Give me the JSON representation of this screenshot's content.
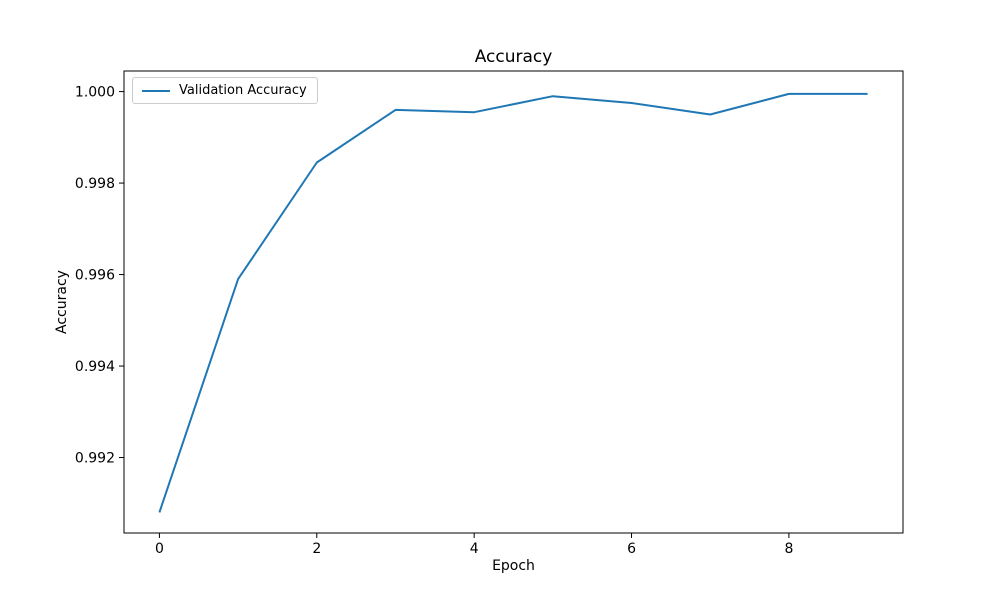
{
  "figure": {
    "background": "#ffffff",
    "axes_edge_color": "#000000",
    "text_color": "#000000"
  },
  "chart_data": {
    "type": "line",
    "title": "Accuracy",
    "xlabel": "Epoch",
    "ylabel": "Accuracy",
    "x": [
      0,
      1,
      2,
      3,
      4,
      5,
      6,
      7,
      8,
      9
    ],
    "series": [
      {
        "name": "Validation Accuracy",
        "color": "#1f77b4",
        "values": [
          0.9908,
          0.9959,
          0.99845,
          0.9996,
          0.99955,
          0.9999,
          0.99975,
          0.9995,
          0.99995,
          0.99995
        ]
      }
    ],
    "xlim": [
      -0.45,
      9.45
    ],
    "ylim": [
      0.99035,
      1.00045
    ],
    "x_ticks": [
      {
        "value": 0,
        "label": "0"
      },
      {
        "value": 2,
        "label": "2"
      },
      {
        "value": 4,
        "label": "4"
      },
      {
        "value": 6,
        "label": "6"
      },
      {
        "value": 8,
        "label": "8"
      }
    ],
    "y_ticks": [
      {
        "value": 0.992,
        "label": "0.992"
      },
      {
        "value": 0.994,
        "label": "0.994"
      },
      {
        "value": 0.996,
        "label": "0.996"
      },
      {
        "value": 0.998,
        "label": "0.998"
      },
      {
        "value": 1.0,
        "label": "1.000"
      }
    ],
    "grid": false,
    "legend_position": "upper left"
  }
}
